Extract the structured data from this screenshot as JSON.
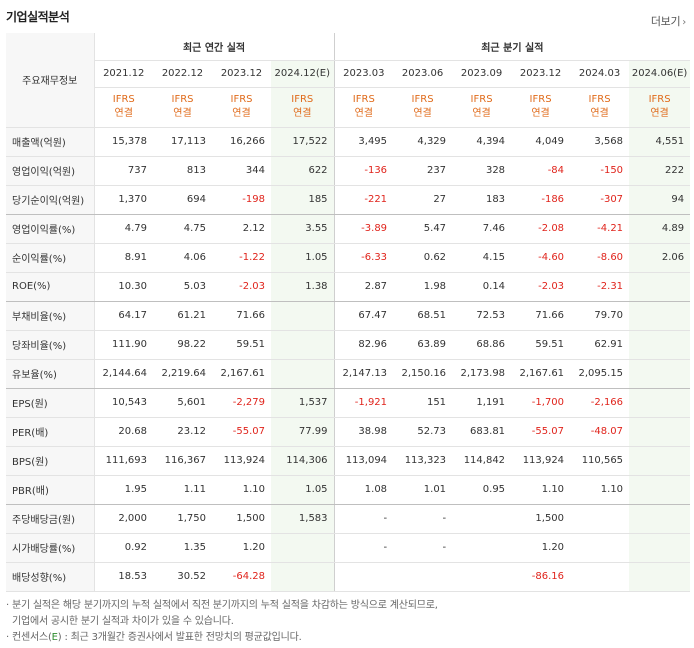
{
  "title": "기업실적분석",
  "more_label": "더보기",
  "header": {
    "corner_label": "주요재무정보",
    "annual_group": "최근 연간 실적",
    "quarter_group": "최근 분기 실적",
    "periods": [
      "2021.12",
      "2022.12",
      "2023.12",
      "2024.12(E)",
      "2023.03",
      "2023.06",
      "2023.09",
      "2023.12",
      "2024.03",
      "2024.06(E)"
    ],
    "ifrs_top": "IFRS",
    "ifrs_bottom": "연결"
  },
  "rows": [
    {
      "label": "매출액(억원)",
      "values": [
        "15,378",
        "17,113",
        "16,266",
        "17,522",
        "3,495",
        "4,329",
        "4,394",
        "4,049",
        "3,568",
        "4,551"
      ]
    },
    {
      "label": "영업이익(억원)",
      "values": [
        "737",
        "813",
        "344",
        "622",
        "-136",
        "237",
        "328",
        "-84",
        "-150",
        "222"
      ]
    },
    {
      "label": "당기순이익(억원)",
      "values": [
        "1,370",
        "694",
        "-198",
        "185",
        "-221",
        "27",
        "183",
        "-186",
        "-307",
        "94"
      ]
    },
    {
      "label": "영업이익률(%)",
      "values": [
        "4.79",
        "4.75",
        "2.12",
        "3.55",
        "-3.89",
        "5.47",
        "7.46",
        "-2.08",
        "-4.21",
        "4.89"
      ]
    },
    {
      "label": "순이익률(%)",
      "values": [
        "8.91",
        "4.06",
        "-1.22",
        "1.05",
        "-6.33",
        "0.62",
        "4.15",
        "-4.60",
        "-8.60",
        "2.06"
      ]
    },
    {
      "label": "ROE(%)",
      "values": [
        "10.30",
        "5.03",
        "-2.03",
        "1.38",
        "2.87",
        "1.98",
        "0.14",
        "-2.03",
        "-2.31",
        ""
      ]
    },
    {
      "label": "부채비율(%)",
      "values": [
        "64.17",
        "61.21",
        "71.66",
        "",
        "67.47",
        "68.51",
        "72.53",
        "71.66",
        "79.70",
        ""
      ]
    },
    {
      "label": "당좌비율(%)",
      "values": [
        "111.90",
        "98.22",
        "59.51",
        "",
        "82.96",
        "63.89",
        "68.86",
        "59.51",
        "62.91",
        ""
      ]
    },
    {
      "label": "유보율(%)",
      "values": [
        "2,144.64",
        "2,219.64",
        "2,167.61",
        "",
        "2,147.13",
        "2,150.16",
        "2,173.98",
        "2,167.61",
        "2,095.15",
        ""
      ]
    },
    {
      "label": "EPS(원)",
      "values": [
        "10,543",
        "5,601",
        "-2,279",
        "1,537",
        "-1,921",
        "151",
        "1,191",
        "-1,700",
        "-2,166",
        ""
      ]
    },
    {
      "label": "PER(배)",
      "values": [
        "20.68",
        "23.12",
        "-55.07",
        "77.99",
        "38.98",
        "52.73",
        "683.81",
        "-55.07",
        "-48.07",
        ""
      ]
    },
    {
      "label": "BPS(원)",
      "values": [
        "111,693",
        "116,367",
        "113,924",
        "114,306",
        "113,094",
        "113,323",
        "114,842",
        "113,924",
        "110,565",
        ""
      ]
    },
    {
      "label": "PBR(배)",
      "values": [
        "1.95",
        "1.11",
        "1.10",
        "1.05",
        "1.08",
        "1.01",
        "0.95",
        "1.10",
        "1.10",
        ""
      ]
    },
    {
      "label": "주당배당금(원)",
      "values": [
        "2,000",
        "1,750",
        "1,500",
        "1,583",
        "-",
        "-",
        "",
        "1,500",
        "",
        ""
      ]
    },
    {
      "label": "시가배당률(%)",
      "values": [
        "0.92",
        "1.35",
        "1.20",
        "",
        "-",
        "-",
        "",
        "1.20",
        "",
        ""
      ]
    },
    {
      "label": "배당성향(%)",
      "values": [
        "18.53",
        "30.52",
        "-64.28",
        "",
        "",
        "",
        "",
        "-86.16",
        "",
        ""
      ]
    }
  ],
  "notes": {
    "line1": "· 분기 실적은 해당 분기까지의 누적 실적에서 직전 분기까지의 누적 실적을 차감하는 방식으로 계산되므로,",
    "line2": "  기업에서 공시한 분기 실적과 차이가 있을 수 있습니다.",
    "line3_prefix": "· 컨센서스(",
    "line3_e": "E",
    "line3_suffix": ") : 최근 3개월간 증권사에서 발표한 전망치의 평균값입니다."
  }
}
